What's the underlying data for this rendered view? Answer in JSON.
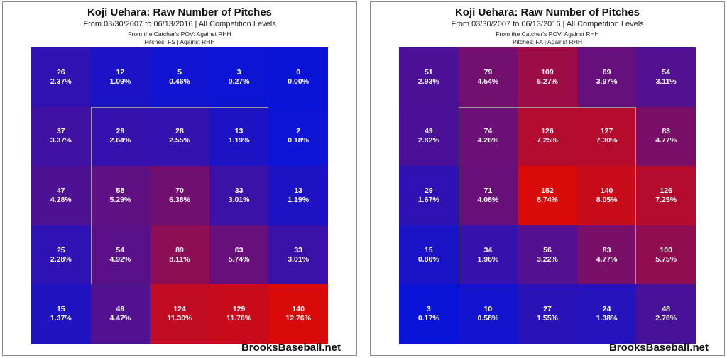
{
  "charts": [
    {
      "title": "Koji Uehara: Raw Number of Pitches",
      "subtitle": "From 03/30/2007 to 06/13/2016 | All Competition Levels",
      "pov": "From the Catcher's POV:  Against RHH",
      "pitches": "Pitches:  FS  |  Against RHH",
      "watermark": "BrooksBaseball.net"
    },
    {
      "title": "Koji Uehara: Raw Number of Pitches",
      "subtitle": "From 03/30/2007 to 06/13/2016 | All Competition Levels",
      "pov": "From the Catcher's POV:  Against RHH",
      "pitches": "Pitches:  FA  |  Against RHH",
      "watermark": "BrooksBaseball.net"
    }
  ],
  "chart_data": [
    {
      "type": "heatmap",
      "title": "Koji Uehara: Raw Number of Pitches",
      "pitch_type": "FS",
      "rows": 5,
      "cols": 5,
      "colors": {
        "low": "#0a14d8",
        "high": "#d80a0a",
        "zone_border": "#9a9a9a"
      },
      "counts": [
        [
          26,
          12,
          5,
          3,
          0
        ],
        [
          37,
          29,
          28,
          13,
          2
        ],
        [
          47,
          58,
          70,
          33,
          13
        ],
        [
          25,
          54,
          89,
          63,
          33
        ],
        [
          15,
          49,
          124,
          129,
          140
        ]
      ],
      "percents": [
        [
          "2.37%",
          "1.09%",
          "0.46%",
          "0.27%",
          "0.00%"
        ],
        [
          "3.37%",
          "2.64%",
          "2.55%",
          "1.19%",
          "0.18%"
        ],
        [
          "4.28%",
          "5.29%",
          "6.38%",
          "3.01%",
          "1.19%"
        ],
        [
          "2.28%",
          "4.92%",
          "8.11%",
          "5.74%",
          "3.01%"
        ],
        [
          "1.37%",
          "4.47%",
          "11.30%",
          "11.76%",
          "12.76%"
        ]
      ]
    },
    {
      "type": "heatmap",
      "title": "Koji Uehara: Raw Number of Pitches",
      "pitch_type": "FA",
      "rows": 5,
      "cols": 5,
      "colors": {
        "low": "#0a14d8",
        "high": "#d80a0a",
        "zone_border": "#9a9a9a"
      },
      "counts": [
        [
          51,
          79,
          109,
          69,
          54
        ],
        [
          49,
          74,
          126,
          127,
          83
        ],
        [
          29,
          71,
          152,
          140,
          126
        ],
        [
          15,
          34,
          56,
          83,
          100
        ],
        [
          3,
          10,
          27,
          24,
          48
        ]
      ],
      "percents": [
        [
          "2.93%",
          "4.54%",
          "6.27%",
          "3.97%",
          "3.11%"
        ],
        [
          "2.82%",
          "4.26%",
          "7.25%",
          "7.30%",
          "4.77%"
        ],
        [
          "1.67%",
          "4.08%",
          "8.74%",
          "8.05%",
          "7.25%"
        ],
        [
          "0.86%",
          "1.96%",
          "3.22%",
          "4.77%",
          "5.75%"
        ],
        [
          "0.17%",
          "0.58%",
          "1.55%",
          "1.38%",
          "2.76%"
        ]
      ]
    }
  ]
}
